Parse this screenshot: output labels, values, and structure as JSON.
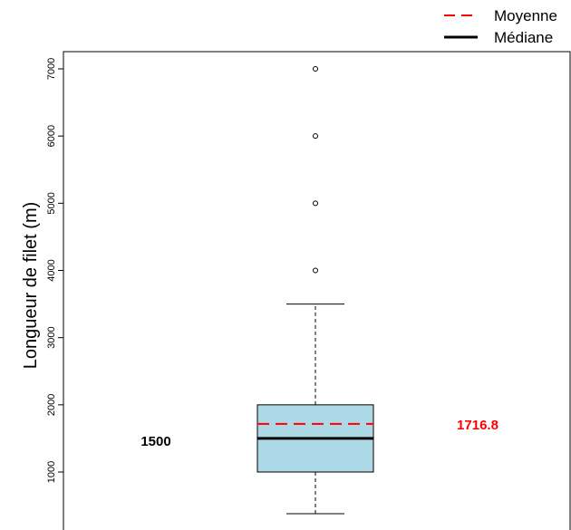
{
  "chart_data": {
    "type": "boxplot",
    "ylabel": "Longueur de filet (m)",
    "ylim": [
      200,
      7250
    ],
    "yticks": [
      1000,
      2000,
      3000,
      4000,
      5000,
      6000,
      7000
    ],
    "ytick_labels": [
      "1000",
      "2000",
      "3000",
      "4000",
      "5000",
      "6000",
      "7000"
    ],
    "box": {
      "whisker_low": 380,
      "q1": 1000,
      "median": 1500,
      "q3": 2000,
      "whisker_high": 3500,
      "mean": 1716.8,
      "outliers": [
        4000,
        5000,
        6000,
        7000
      ],
      "fill_color": "#add8e6"
    },
    "median_label": "1500",
    "mean_label": "1716.8",
    "mean_color": "#ff0000",
    "median_color": "#000000",
    "legend": {
      "position": "top-right",
      "entries": [
        {
          "label": "Moyenne",
          "style": "dashed",
          "color": "#ff0000"
        },
        {
          "label": "Médiane",
          "style": "solid",
          "color": "#000000"
        }
      ]
    }
  }
}
